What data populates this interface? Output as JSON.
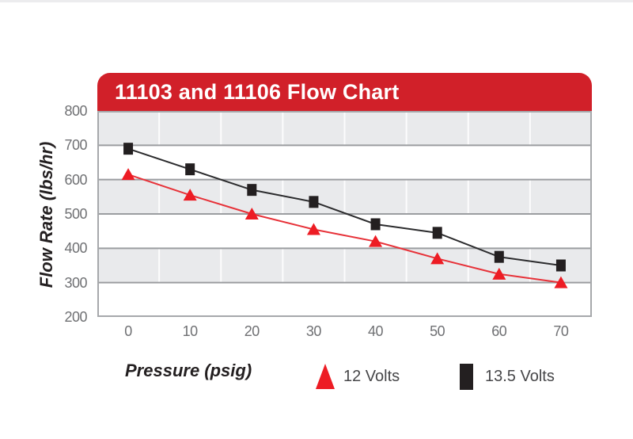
{
  "window": {
    "background": "#ffffff"
  },
  "chart_data": {
    "type": "line",
    "title": "11103 and 11106 Flow Chart",
    "xlabel": "Pressure (psig)",
    "ylabel": "Flow Rate (lbs/hr)",
    "categories": [
      0,
      10,
      20,
      30,
      40,
      50,
      60,
      70
    ],
    "x_tick_labels": [
      "0",
      "10",
      "20",
      "30",
      "40",
      "50",
      "60",
      "70"
    ],
    "y_tick_labels": [
      800,
      700,
      600,
      500,
      400,
      300,
      200
    ],
    "ylim": [
      200,
      800
    ],
    "y_major_step": 100,
    "series": [
      {
        "name": "12 Volts",
        "marker": "triangle",
        "marker_color": "#ed1c24",
        "line_color": "#e73138",
        "values": [
          615,
          555,
          500,
          455,
          420,
          370,
          325,
          300
        ]
      },
      {
        "name": "13.5 Volts",
        "marker": "square",
        "marker_color": "#231f20",
        "line_color": "#2b2b2d",
        "values": [
          690,
          630,
          570,
          535,
          470,
          445,
          375,
          350
        ]
      }
    ],
    "grid": "horizontal major gridlines; faint vertical lines at category boundaries",
    "plot_background": "alternating gray/white horizontal bands (gray: 800-700, 600-500, 400-300)",
    "legend_position": "bottom"
  },
  "colors": {
    "banner_red": "#d12029",
    "band_gray": "#e9eaec",
    "band_white": "#ffffff",
    "gridline": "#9b9da0",
    "frame": "#a6a8ab",
    "tick_text": "#6f7073",
    "axis_title_text": "#231f20",
    "legend_text": "#464648",
    "title_text": "#ffffff"
  }
}
